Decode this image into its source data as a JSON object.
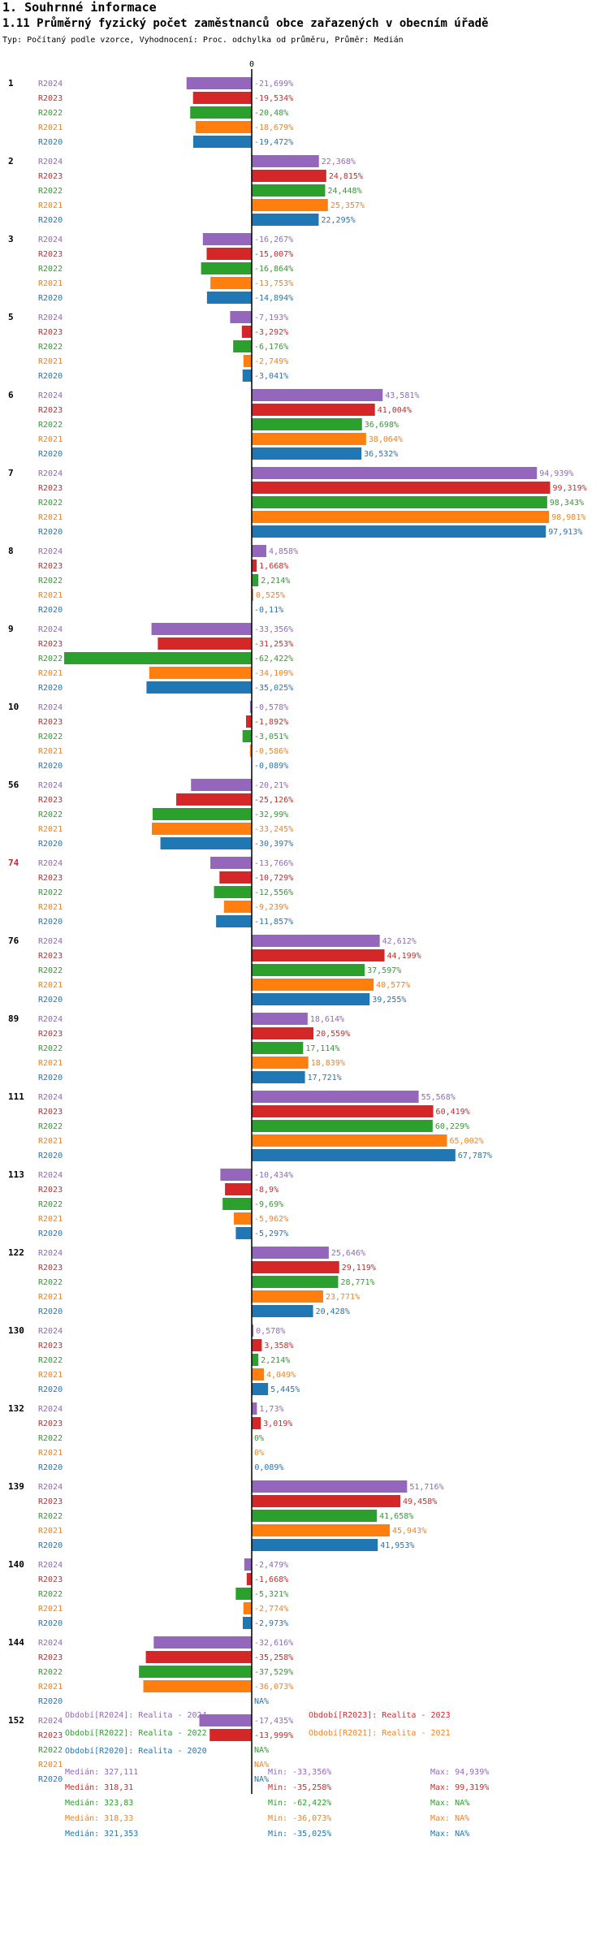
{
  "header": {
    "section": "1. Souhrnné informace",
    "title": "1.11 Průměrný fyzický počet zaměstnanců obce zařazených v obecním úřadě",
    "subtitle": "Typ: Počítaný podle vzorce, Vyhodnocení: Proc. odchylka od průměru, Průměr: Medián"
  },
  "colors": {
    "R2024": "#9467bd",
    "R2023": "#d62728",
    "R2022": "#2ca02c",
    "R2021": "#ff7f0e",
    "R2020": "#1f77b4",
    "highlight_group": "#d62728"
  },
  "chart_data": {
    "type": "bar",
    "orientation": "horizontal",
    "title": "1.11 Průměrný fyzický počet zaměstnanců obce zařazených v obecním úřadě",
    "zero_label": "0",
    "xlim": [
      -63,
      100
    ],
    "series_names": [
      "R2024",
      "R2023",
      "R2022",
      "R2021",
      "R2020"
    ],
    "groups": [
      {
        "id": "1",
        "values": [
          -21.699,
          -19.534,
          -20.48,
          -18.679,
          -19.472
        ],
        "labels": [
          "-21,699%",
          "-19,534%",
          "-20,48%",
          "-18,679%",
          "-19,472%"
        ]
      },
      {
        "id": "2",
        "values": [
          22.368,
          24.815,
          24.448,
          25.357,
          22.295
        ],
        "labels": [
          "22,368%",
          "24,815%",
          "24,448%",
          "25,357%",
          "22,295%"
        ]
      },
      {
        "id": "3",
        "values": [
          -16.267,
          -15.007,
          -16.864,
          -13.753,
          -14.894
        ],
        "labels": [
          "-16,267%",
          "-15,007%",
          "-16,864%",
          "-13,753%",
          "-14,894%"
        ]
      },
      {
        "id": "5",
        "values": [
          -7.193,
          -3.292,
          -6.176,
          -2.749,
          -3.041
        ],
        "labels": [
          "-7,193%",
          "-3,292%",
          "-6,176%",
          "-2,749%",
          "-3,041%"
        ]
      },
      {
        "id": "6",
        "values": [
          43.581,
          41.004,
          36.698,
          38.064,
          36.532
        ],
        "labels": [
          "43,581%",
          "41,004%",
          "36,698%",
          "38,064%",
          "36,532%"
        ]
      },
      {
        "id": "7",
        "values": [
          94.939,
          99.319,
          98.343,
          98.981,
          97.913
        ],
        "labels": [
          "94,939%",
          "99,319%",
          "98,343%",
          "98,981%",
          "97,913%"
        ]
      },
      {
        "id": "8",
        "values": [
          4.858,
          1.668,
          2.214,
          0.525,
          -0.11
        ],
        "labels": [
          "4,858%",
          "1,668%",
          "2,214%",
          "0,525%",
          "-0,11%"
        ]
      },
      {
        "id": "9",
        "values": [
          -33.356,
          -31.253,
          -62.422,
          -34.109,
          -35.025
        ],
        "labels": [
          "-33,356%",
          "-31,253%",
          "-62,422%",
          "-34,109%",
          "-35,025%"
        ]
      },
      {
        "id": "10",
        "values": [
          -0.578,
          -1.892,
          -3.051,
          -0.586,
          -0.089
        ],
        "labels": [
          "-0,578%",
          "-1,892%",
          "-3,051%",
          "-0,586%",
          "-0,089%"
        ]
      },
      {
        "id": "56",
        "values": [
          -20.21,
          -25.126,
          -32.99,
          -33.245,
          -30.397
        ],
        "labels": [
          "-20,21%",
          "-25,126%",
          "-32,99%",
          "-33,245%",
          "-30,397%"
        ]
      },
      {
        "id": "74",
        "values": [
          -13.766,
          -10.729,
          -12.556,
          -9.239,
          -11.857
        ],
        "labels": [
          "-13,766%",
          "-10,729%",
          "-12,556%",
          "-9,239%",
          "-11,857%"
        ],
        "highlight": true
      },
      {
        "id": "76",
        "values": [
          42.612,
          44.199,
          37.597,
          40.577,
          39.255
        ],
        "labels": [
          "42,612%",
          "44,199%",
          "37,597%",
          "40,577%",
          "39,255%"
        ]
      },
      {
        "id": "89",
        "values": [
          18.614,
          20.559,
          17.114,
          18.839,
          17.721
        ],
        "labels": [
          "18,614%",
          "20,559%",
          "17,114%",
          "18,839%",
          "17,721%"
        ]
      },
      {
        "id": "111",
        "values": [
          55.568,
          60.419,
          60.229,
          65.002,
          67.787
        ],
        "labels": [
          "55,568%",
          "60,419%",
          "60,229%",
          "65,002%",
          "67,787%"
        ]
      },
      {
        "id": "113",
        "values": [
          -10.434,
          -8.9,
          -9.69,
          -5.962,
          -5.297
        ],
        "labels": [
          "-10,434%",
          "-8,9%",
          "-9,69%",
          "-5,962%",
          "-5,297%"
        ]
      },
      {
        "id": "122",
        "values": [
          25.646,
          29.119,
          28.771,
          23.771,
          20.428
        ],
        "labels": [
          "25,646%",
          "29,119%",
          "28,771%",
          "23,771%",
          "20,428%"
        ]
      },
      {
        "id": "130",
        "values": [
          0.578,
          3.358,
          2.214,
          4.049,
          5.445
        ],
        "labels": [
          "0,578%",
          "3,358%",
          "2,214%",
          "4,049%",
          "5,445%"
        ]
      },
      {
        "id": "132",
        "values": [
          1.73,
          3.019,
          0,
          0,
          0.089
        ],
        "labels": [
          "1,73%",
          "3,019%",
          "0%",
          "0%",
          "0,089%"
        ]
      },
      {
        "id": "139",
        "values": [
          51.716,
          49.458,
          41.658,
          45.943,
          41.953
        ],
        "labels": [
          "51,716%",
          "49,458%",
          "41,658%",
          "45,943%",
          "41,953%"
        ]
      },
      {
        "id": "140",
        "values": [
          -2.479,
          -1.668,
          -5.321,
          -2.774,
          -2.973
        ],
        "labels": [
          "-2,479%",
          "-1,668%",
          "-5,321%",
          "-2,774%",
          "-2,973%"
        ]
      },
      {
        "id": "144",
        "values": [
          -32.616,
          -35.258,
          -37.529,
          -36.073,
          null
        ],
        "labels": [
          "-32,616%",
          "-35,258%",
          "-37,529%",
          "-36,073%",
          "NA%"
        ]
      },
      {
        "id": "152",
        "values": [
          -17.435,
          -13.999,
          null,
          null,
          null
        ],
        "labels": [
          "-17,435%",
          "-13,999%",
          "NA%",
          "NA%",
          "NA%"
        ]
      }
    ],
    "legend": [
      {
        "key": "R2024",
        "label": "Období[R2024]: Realita - 2024"
      },
      {
        "key": "R2023",
        "label": "Období[R2023]: Realita - 2023"
      },
      {
        "key": "R2022",
        "label": "Období[R2022]: Realita - 2022"
      },
      {
        "key": "R2021",
        "label": "Období[R2021]: Realita - 2021"
      },
      {
        "key": "R2020",
        "label": "Období[R2020]: Realita - 2020"
      }
    ],
    "stats": [
      {
        "key": "R2024",
        "median": "Medián: 327,111",
        "min": "Min: -33,356%",
        "max": "Max: 94,939%"
      },
      {
        "key": "R2023",
        "median": "Medián: 318,31",
        "min": "Min: -35,258%",
        "max": "Max: 99,319%"
      },
      {
        "key": "R2022",
        "median": "Medián: 323,83",
        "min": "Min: -62,422%",
        "max": "Max: NA%"
      },
      {
        "key": "R2021",
        "median": "Medián: 318,33",
        "min": "Min: -36,073%",
        "max": "Max: NA%"
      },
      {
        "key": "R2020",
        "median": "Medián: 321,353",
        "min": "Min: -35,025%",
        "max": "Max: NA%"
      }
    ]
  }
}
